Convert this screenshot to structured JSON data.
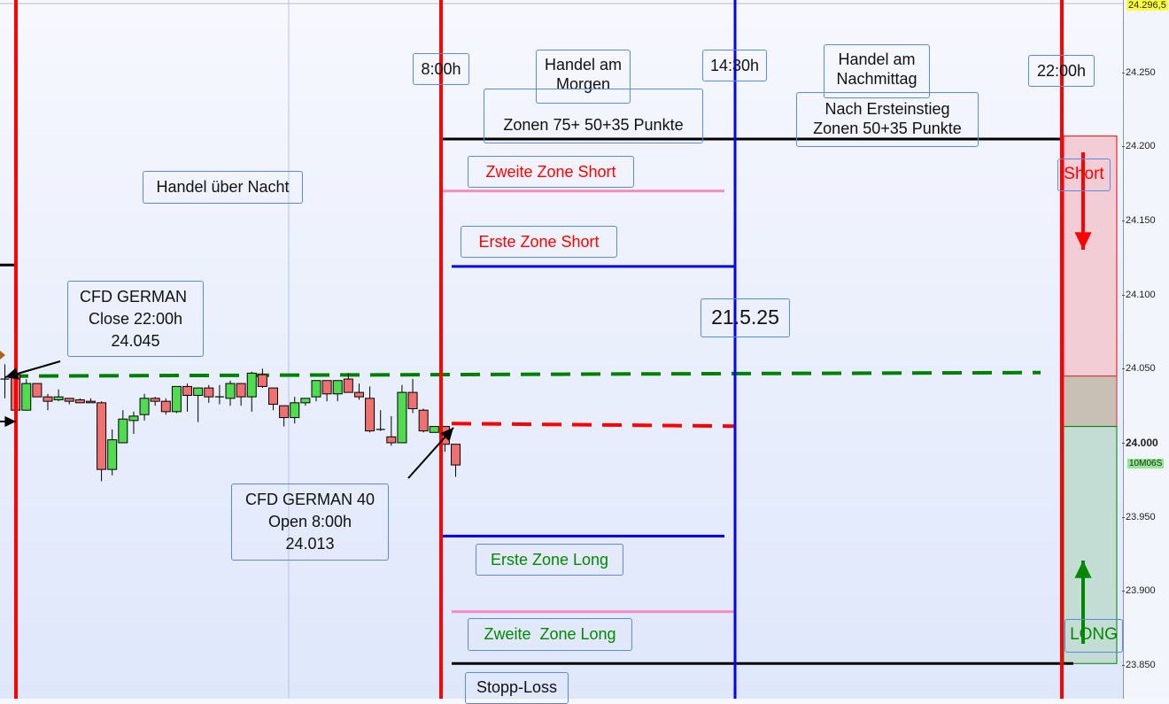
{
  "chart_data": {
    "type": "candlestick",
    "title": "",
    "y_axis": {
      "ticks": [
        "24.250",
        "24.200",
        "24.150",
        "24.100",
        "24.050",
        "24.000",
        "23.950",
        "23.900",
        "23.850"
      ],
      "tick_values": [
        24250,
        24200,
        24150,
        24100,
        24050,
        24000,
        23950,
        23900,
        23850
      ],
      "range": [
        23826,
        24299
      ],
      "current_price_label": "24.296,5",
      "current_price": 24296.5,
      "timer_label": "10M06S"
    },
    "candles": [
      [
        24043,
        24053,
        24030,
        24043
      ],
      [
        24046,
        24047,
        24022,
        24022
      ],
      [
        24022,
        24043,
        24022,
        24040
      ],
      [
        24040,
        24040,
        24031,
        24031
      ],
      [
        24031,
        24033,
        24022,
        24028
      ],
      [
        24029,
        24036,
        24028,
        24031
      ],
      [
        24030,
        24030,
        24026,
        24028
      ],
      [
        24029,
        24030,
        24027,
        24027
      ],
      [
        24028,
        24030,
        24027,
        24027
      ],
      [
        24027,
        24028,
        23974,
        23982
      ],
      [
        23982,
        24009,
        23978,
        24002
      ],
      [
        24000,
        24022,
        24000,
        24016
      ],
      [
        24015,
        24021,
        24006,
        24018
      ],
      [
        24019,
        24033,
        24015,
        24030
      ],
      [
        24030,
        24031,
        24025,
        24028
      ],
      [
        24028,
        24030,
        24019,
        24021
      ],
      [
        24021,
        24038,
        24020,
        24038
      ],
      [
        24038,
        24040,
        24021,
        24032
      ],
      [
        24032,
        24037,
        24014,
        24037
      ],
      [
        24037,
        24039,
        24027,
        24031
      ],
      [
        24031,
        24039,
        24026,
        24031
      ],
      [
        24030,
        24042,
        24025,
        24040
      ],
      [
        24040,
        24040,
        24025,
        24031
      ],
      [
        24031,
        24048,
        24021,
        24047
      ],
      [
        24046,
        24050,
        24037,
        24038
      ],
      [
        24037,
        24037,
        24022,
        24026
      ],
      [
        24025,
        24025,
        24011,
        24017
      ],
      [
        24017,
        24031,
        24013,
        24027
      ],
      [
        24027,
        24030,
        24025,
        24030
      ],
      [
        24031,
        24042,
        24028,
        24042
      ],
      [
        24042,
        24042,
        24028,
        24033
      ],
      [
        24033,
        24042,
        24028,
        24042
      ],
      [
        24043,
        24047,
        24034,
        24034
      ],
      [
        24034,
        24040,
        24029,
        24031
      ],
      [
        24030,
        24038,
        24007,
        24008
      ],
      [
        24009,
        24022,
        24008,
        24009
      ],
      [
        24004,
        24018,
        23998,
        24000
      ],
      [
        24000,
        24039,
        24000,
        24034
      ],
      [
        24034,
        24043,
        24020,
        24023
      ],
      [
        24022,
        24023,
        24007,
        24008
      ],
      [
        24007,
        24011,
        24007,
        24011
      ],
      [
        24011,
        24011,
        23994,
        23999
      ],
      [
        23999,
        23999,
        23977,
        23985
      ]
    ],
    "candle_fields": [
      "open",
      "high",
      "low",
      "close"
    ],
    "levels": [
      {
        "price": 24205,
        "color": "#000000"
      },
      {
        "price": 24170,
        "color": "#f48cc0"
      },
      {
        "price": 24119,
        "color": "#0000ee"
      },
      {
        "price": 24045,
        "color": "#008000",
        "dashed": true
      },
      {
        "price": 24013,
        "color": "#ff0000",
        "dashed": true
      },
      {
        "price": 23937,
        "color": "#0000ee"
      },
      {
        "price": 23886,
        "color": "#f48cc0"
      },
      {
        "price": 23851,
        "color": "#000000"
      },
      {
        "price": 24120,
        "color": "#000000"
      }
    ],
    "zones": [
      {
        "from": 24045,
        "to": 24207,
        "color": "#f2cdd6"
      },
      {
        "from": 24011,
        "to": 24045,
        "color": "#c8bfb5"
      },
      {
        "from": 23851,
        "to": 24011,
        "color": "#c3ddd5"
      }
    ],
    "colors": {
      "up": "#4fdc4f",
      "down": "#ee7070",
      "session_line": "#ff0000",
      "us_open_line": "#0000ff"
    }
  },
  "annotations": {
    "t800": "8:00h",
    "morning": "Handel am\nMorgen",
    "morning_zones": "\nZonen 75+ 50+35 Punkte",
    "t1430": "14:30h",
    "afternoon": "Handel am\nNachmittag",
    "afternoon_zones": "Nach Ersteinstieg\nZonen 50+35 Punkte",
    "t2200": "22:00h",
    "overnight": "Handel über Nacht",
    "second_short": "Zweite Zone Short",
    "first_short": "Erste Zone Short",
    "date": "21.5.25",
    "close_box": "CFD GERMAN \nClose 22:00h\n24.045",
    "open_box": "CFD GERMAN 40\nOpen 8:00h\n24.013",
    "first_long": "Erste Zone Long",
    "second_long": "Zweite  Zone Long",
    "stop_loss": "Stopp-Loss",
    "short": "Short",
    "long": "LONG"
  }
}
